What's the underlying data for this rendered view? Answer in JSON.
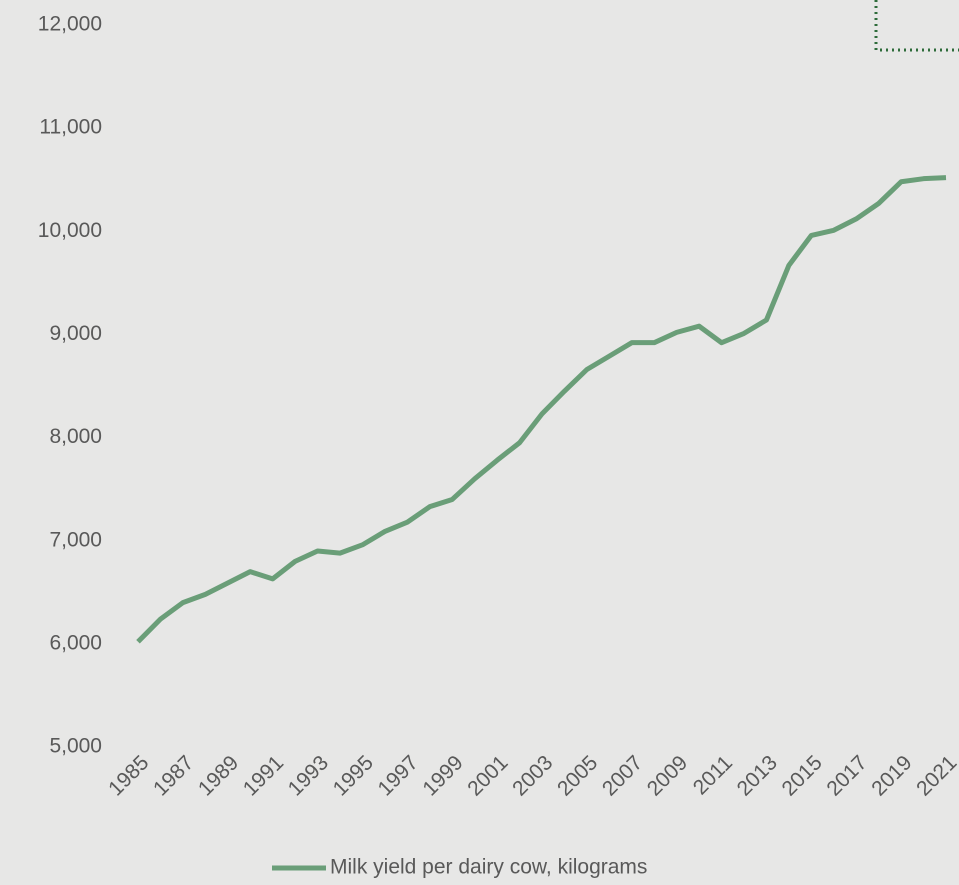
{
  "chart_data": {
    "type": "line",
    "x": [
      1985,
      1986,
      1987,
      1988,
      1989,
      1990,
      1991,
      1992,
      1993,
      1994,
      1995,
      1996,
      1997,
      1998,
      1999,
      2000,
      2001,
      2002,
      2003,
      2004,
      2005,
      2006,
      2007,
      2008,
      2009,
      2010,
      2011,
      2012,
      2013,
      2014,
      2015,
      2016,
      2017,
      2018,
      2019,
      2020,
      2021
    ],
    "series": [
      {
        "name": "Milk yield per dairy cow, kilograms",
        "color": "#6a9e78",
        "values": [
          6020,
          6240,
          6400,
          6480,
          6590,
          6700,
          6630,
          6800,
          6900,
          6880,
          6960,
          7090,
          7180,
          7330,
          7400,
          7600,
          7780,
          7950,
          8230,
          8450,
          8660,
          8790,
          8920,
          8920,
          9020,
          9080,
          8920,
          9010,
          9140,
          9670,
          9960,
          10010,
          10120,
          10270,
          10480,
          10510,
          10520
        ]
      }
    ],
    "xlim": [
      1985,
      2021
    ],
    "xticks": [
      1985,
      1987,
      1989,
      1991,
      1993,
      1995,
      1997,
      1999,
      2001,
      2003,
      2005,
      2007,
      2009,
      2011,
      2013,
      2015,
      2017,
      2019,
      2021
    ],
    "ylim": [
      5000,
      12000
    ],
    "yticks": [
      {
        "value": 5000,
        "label": "5,000"
      },
      {
        "value": 6000,
        "label": "6,000"
      },
      {
        "value": 7000,
        "label": "7,000"
      },
      {
        "value": 8000,
        "label": "8,000"
      },
      {
        "value": 9000,
        "label": "9,000"
      },
      {
        "value": 10000,
        "label": "10,000"
      },
      {
        "value": 11000,
        "label": "11,000"
      },
      {
        "value": 12000,
        "label": "12,000"
      }
    ],
    "grid": false,
    "legend": "bottom"
  }
}
